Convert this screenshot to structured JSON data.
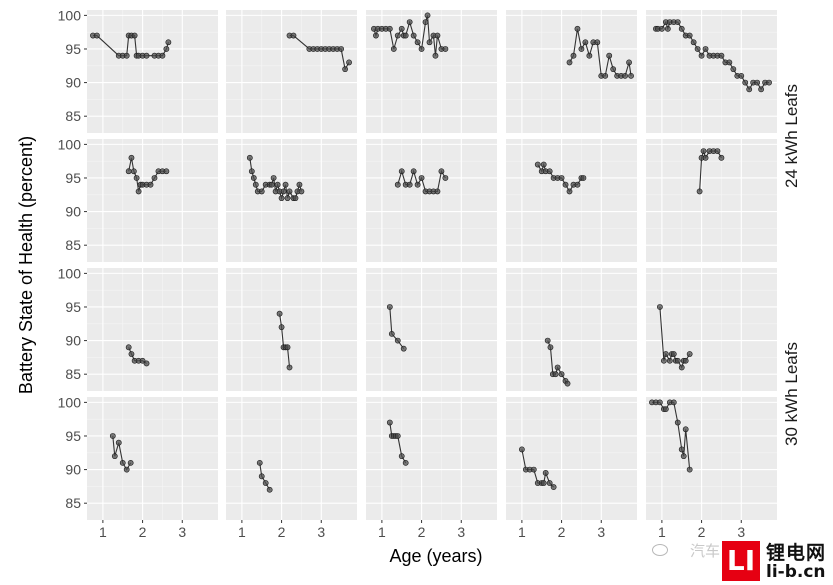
{
  "chart_data": {
    "type": "scatter",
    "mode": "lines+markers",
    "xlabel": "Age (years)",
    "ylabel": "Battery State of Health (percent)",
    "xlim": [
      0.6,
      3.9
    ],
    "ylim": [
      82.5,
      100.8
    ],
    "x_ticks": [
      1,
      2,
      3
    ],
    "y_ticks": [
      85,
      90,
      95,
      100
    ],
    "grid": true,
    "row_strips": [
      {
        "rows": [
          0,
          1
        ],
        "label": "24 kWh Leafs"
      },
      {
        "rows": [
          2,
          3
        ],
        "label": "30 kWh Leafs"
      }
    ],
    "colors": {
      "panel": "#ebebeb",
      "grid_major": "#ffffff",
      "grid_minor": "#f5f5f5",
      "line": "#333333",
      "point_fill": "#4d4d4d"
    },
    "panels": [
      {
        "row": 0,
        "col": 0,
        "x": [
          0.75,
          0.85,
          1.4,
          1.5,
          1.6,
          1.65,
          1.72,
          1.8,
          1.85,
          1.9,
          2.0,
          2.1,
          2.3,
          2.4,
          2.5,
          2.6,
          2.65
        ],
        "y": [
          97,
          97,
          94,
          94,
          94,
          97,
          97,
          97,
          94,
          94,
          94,
          94,
          94,
          94,
          94,
          95,
          96
        ]
      },
      {
        "row": 0,
        "col": 1,
        "x": [
          2.2,
          2.3,
          2.7,
          2.8,
          2.9,
          3.0,
          3.1,
          3.2,
          3.3,
          3.4,
          3.5,
          3.6,
          3.7
        ],
        "y": [
          97,
          97,
          95,
          95,
          95,
          95,
          95,
          95,
          95,
          95,
          95,
          92,
          93
        ]
      },
      {
        "row": 0,
        "col": 2,
        "x": [
          0.8,
          0.85,
          0.9,
          1.0,
          1.1,
          1.2,
          1.3,
          1.4,
          1.5,
          1.55,
          1.6,
          1.7,
          1.8,
          1.9,
          2.0,
          2.1,
          2.15,
          2.2,
          2.3,
          2.35,
          2.4,
          2.5,
          2.6
        ],
        "y": [
          98,
          97,
          98,
          98,
          98,
          98,
          95,
          97,
          98,
          97,
          97,
          99,
          97,
          96,
          95,
          99,
          100,
          96,
          97,
          94,
          97,
          95,
          95
        ]
      },
      {
        "row": 0,
        "col": 3,
        "x": [
          2.2,
          2.3,
          2.4,
          2.5,
          2.6,
          2.7,
          2.8,
          2.9,
          3.0,
          3.1,
          3.2,
          3.3,
          3.4,
          3.5,
          3.6,
          3.7,
          3.75
        ],
        "y": [
          93,
          94,
          98,
          95,
          96,
          94,
          96,
          96,
          91,
          91,
          94,
          92,
          91,
          91,
          91,
          93,
          91
        ]
      },
      {
        "row": 0,
        "col": 4,
        "x": [
          0.85,
          0.9,
          1.0,
          1.1,
          1.15,
          1.2,
          1.3,
          1.4,
          1.5,
          1.6,
          1.7,
          1.8,
          1.9,
          2.0,
          2.1,
          2.2,
          2.3,
          2.4,
          2.5,
          2.6,
          2.7,
          2.8,
          2.9,
          3.0,
          3.1,
          3.2,
          3.3,
          3.4,
          3.5,
          3.6,
          3.7
        ],
        "y": [
          98,
          98,
          98,
          99,
          98,
          99,
          99,
          99,
          98,
          97,
          97,
          96,
          95,
          94,
          95,
          94,
          94,
          94,
          94,
          93,
          93,
          92,
          91,
          91,
          90,
          89,
          90,
          90,
          89,
          90,
          90
        ]
      },
      {
        "row": 1,
        "col": 0,
        "x": [
          1.65,
          1.72,
          1.78,
          1.85,
          1.9,
          1.95,
          2.0,
          2.1,
          2.2,
          2.3,
          2.4,
          2.5,
          2.6
        ],
        "y": [
          96,
          98,
          96,
          95,
          93,
          94,
          94,
          94,
          94,
          95,
          96,
          96,
          96
        ]
      },
      {
        "row": 1,
        "col": 1,
        "x": [
          1.2,
          1.25,
          1.3,
          1.35,
          1.4,
          1.5,
          1.6,
          1.7,
          1.75,
          1.8,
          1.85,
          1.9,
          1.95,
          2.0,
          2.05,
          2.1,
          2.15,
          2.2,
          2.3,
          2.35,
          2.4,
          2.45,
          2.5
        ],
        "y": [
          98,
          96,
          95,
          94,
          93,
          93,
          94,
          94,
          94,
          95,
          93,
          94,
          93,
          92,
          93,
          94,
          92,
          93,
          92,
          92,
          93,
          94,
          93
        ]
      },
      {
        "row": 1,
        "col": 2,
        "x": [
          1.4,
          1.5,
          1.6,
          1.7,
          1.8,
          1.9,
          2.0,
          2.1,
          2.2,
          2.3,
          2.4,
          2.5,
          2.6
        ],
        "y": [
          94,
          96,
          94,
          94,
          96,
          94,
          95,
          93,
          93,
          93,
          93,
          96,
          95
        ]
      },
      {
        "row": 1,
        "col": 3,
        "x": [
          1.4,
          1.5,
          1.55,
          1.6,
          1.7,
          1.8,
          1.9,
          2.0,
          2.1,
          2.2,
          2.3,
          2.4,
          2.5,
          2.55
        ],
        "y": [
          97,
          96,
          97,
          96,
          96,
          95,
          95,
          95,
          94,
          93,
          94,
          94,
          95,
          95
        ]
      },
      {
        "row": 1,
        "col": 4,
        "x": [
          1.95,
          2.0,
          2.05,
          2.1,
          2.2,
          2.3,
          2.4,
          2.5
        ],
        "y": [
          93,
          98,
          99,
          98,
          99,
          99,
          99,
          98
        ]
      },
      {
        "row": 2,
        "col": 0,
        "x": [
          1.65,
          1.72,
          1.8,
          1.9,
          2.0,
          2.1
        ],
        "y": [
          89,
          88,
          87,
          87,
          87,
          86.6
        ]
      },
      {
        "row": 2,
        "col": 1,
        "x": [
          1.95,
          2.0,
          2.05,
          2.1,
          2.15,
          2.2
        ],
        "y": [
          94,
          92,
          89,
          89,
          89,
          86
        ]
      },
      {
        "row": 2,
        "col": 2,
        "x": [
          1.2,
          1.25,
          1.4,
          1.55
        ],
        "y": [
          95,
          91,
          90,
          88.8
        ]
      },
      {
        "row": 2,
        "col": 3,
        "x": [
          1.65,
          1.72,
          1.78,
          1.85,
          1.9,
          2.0,
          2.1,
          2.15
        ],
        "y": [
          90,
          89,
          85,
          85,
          86,
          85,
          84,
          83.6
        ]
      },
      {
        "row": 2,
        "col": 4,
        "x": [
          0.95,
          1.05,
          1.1,
          1.2,
          1.25,
          1.3,
          1.35,
          1.4,
          1.5,
          1.55,
          1.6,
          1.7
        ],
        "y": [
          95,
          87,
          88,
          87,
          88,
          88,
          87,
          87,
          86,
          87,
          87,
          88
        ]
      },
      {
        "row": 3,
        "col": 0,
        "x": [
          1.25,
          1.3,
          1.4,
          1.5,
          1.6,
          1.7
        ],
        "y": [
          95,
          92,
          94,
          91,
          90,
          91
        ]
      },
      {
        "row": 3,
        "col": 1,
        "x": [
          1.45,
          1.5,
          1.6,
          1.7
        ],
        "y": [
          91,
          89,
          88,
          87
        ]
      },
      {
        "row": 3,
        "col": 2,
        "x": [
          1.2,
          1.25,
          1.3,
          1.35,
          1.4,
          1.5,
          1.6
        ],
        "y": [
          97,
          95,
          95,
          95,
          95,
          92,
          91
        ]
      },
      {
        "row": 3,
        "col": 3,
        "x": [
          1.0,
          1.1,
          1.2,
          1.3,
          1.4,
          1.5,
          1.55,
          1.6,
          1.7,
          1.8
        ],
        "y": [
          93,
          90,
          90,
          90,
          88,
          88,
          88,
          89.5,
          88,
          87.4
        ]
      },
      {
        "row": 3,
        "col": 4,
        "x": [
          0.75,
          0.85,
          0.95,
          1.05,
          1.1,
          1.2,
          1.3,
          1.4,
          1.5,
          1.55,
          1.6,
          1.7
        ],
        "y": [
          100,
          100,
          100,
          99,
          99,
          100,
          100,
          97,
          93,
          92,
          96,
          90
        ]
      }
    ]
  },
  "watermark": {
    "brand_name": "锂电网",
    "url": "li-b.cn",
    "logo_letters": "LI",
    "wechat_text": "汽车"
  }
}
